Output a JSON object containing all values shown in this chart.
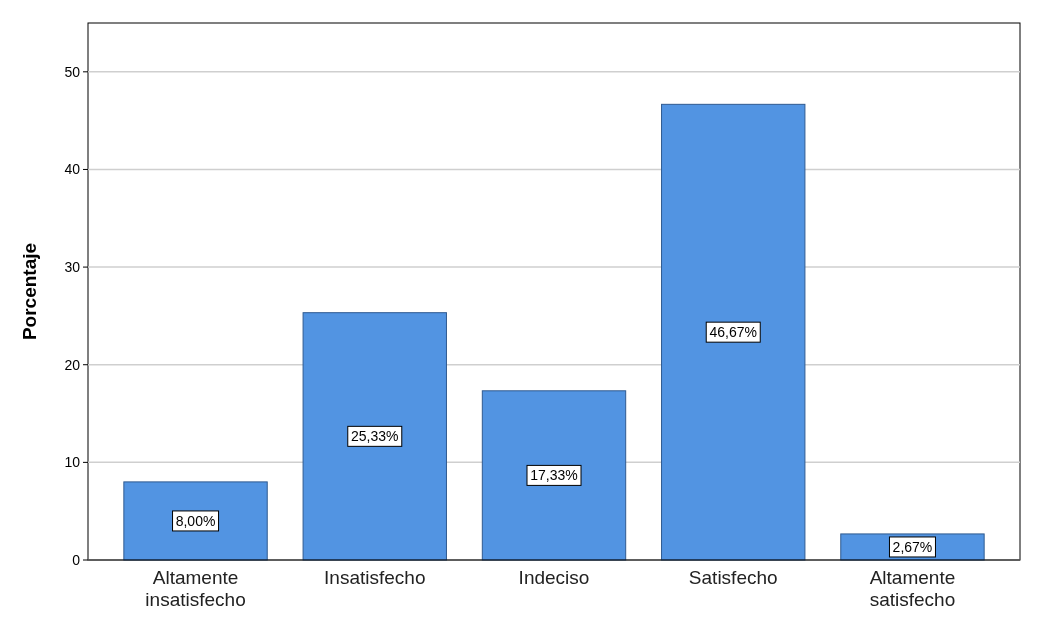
{
  "chart_data": {
    "type": "bar",
    "ylabel": "Porcentaje",
    "categories": [
      "Altamente insatisfecho",
      "Insatisfecho",
      "Indeciso",
      "Satisfecho",
      "Altamente satisfecho"
    ],
    "values": [
      8.0,
      25.33,
      17.33,
      46.67,
      2.67
    ],
    "value_labels": [
      "8,00%",
      "25,33%",
      "17,33%",
      "46,67%",
      "2,67%"
    ],
    "color": "#5294e2",
    "ylim": [
      0,
      55
    ],
    "yticks": [
      0,
      10,
      20,
      30,
      40,
      50
    ],
    "grid": "y"
  }
}
